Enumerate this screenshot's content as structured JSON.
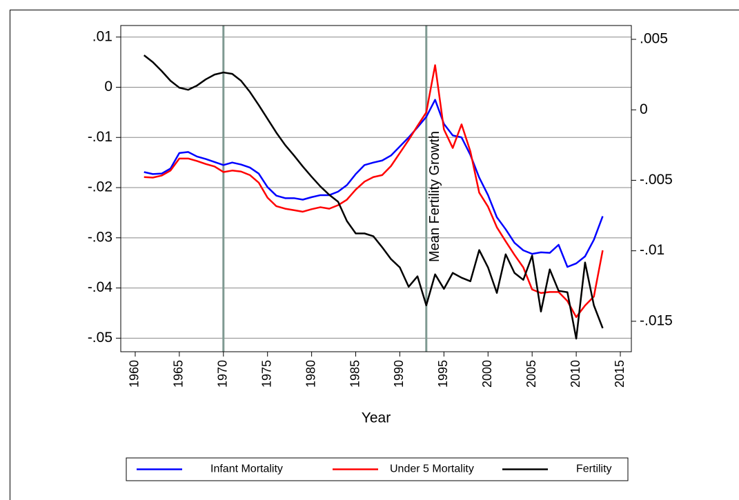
{
  "chart_data": {
    "type": "line",
    "xlabel": "Year",
    "annotation": {
      "text": "Mean Fertility Growth",
      "x": 1994
    },
    "vlines": [
      1970,
      1993
    ],
    "vline_color": "#7f9a92",
    "x": [
      1961,
      1962,
      1963,
      1964,
      1965,
      1966,
      1967,
      1968,
      1969,
      1970,
      1971,
      1972,
      1973,
      1974,
      1975,
      1976,
      1977,
      1978,
      1979,
      1980,
      1981,
      1982,
      1983,
      1984,
      1985,
      1986,
      1987,
      1988,
      1989,
      1990,
      1991,
      1992,
      1993,
      1994,
      1995,
      1996,
      1997,
      1998,
      1999,
      2000,
      2001,
      2002,
      2003,
      2004,
      2005,
      2006,
      2007,
      2008,
      2009,
      2010,
      2011,
      2012,
      2013
    ],
    "series": [
      {
        "name": "Infant Mortality",
        "color": "#0000ff",
        "axis": "y",
        "values": [
          -0.0169,
          -0.0173,
          -0.0172,
          -0.0162,
          -0.0131,
          -0.0129,
          -0.0138,
          -0.0143,
          -0.0149,
          -0.0155,
          -0.015,
          -0.0154,
          -0.016,
          -0.0172,
          -0.0199,
          -0.0216,
          -0.0221,
          -0.0221,
          -0.0224,
          -0.0219,
          -0.0215,
          -0.0215,
          -0.0208,
          -0.0195,
          -0.0173,
          -0.0155,
          -0.015,
          -0.0146,
          -0.0136,
          -0.0118,
          -0.01,
          -0.008,
          -0.0059,
          -0.0025,
          -0.0073,
          -0.0096,
          -0.01,
          -0.0135,
          -0.018,
          -0.0215,
          -0.0259,
          -0.0283,
          -0.031,
          -0.0325,
          -0.0332,
          -0.0329,
          -0.033,
          -0.0314,
          -0.0358,
          -0.0351,
          -0.0337,
          -0.0304,
          -0.0257
        ]
      },
      {
        "name": "Under 5 Mortality",
        "color": "#ff0000",
        "axis": "y",
        "values": [
          -0.0179,
          -0.018,
          -0.0176,
          -0.0166,
          -0.0142,
          -0.0142,
          -0.0147,
          -0.0153,
          -0.0158,
          -0.0169,
          -0.0166,
          -0.0168,
          -0.0175,
          -0.019,
          -0.022,
          -0.0237,
          -0.0242,
          -0.0245,
          -0.0248,
          -0.0243,
          -0.0239,
          -0.0242,
          -0.0235,
          -0.0224,
          -0.0204,
          -0.0188,
          -0.0179,
          -0.0175,
          -0.0157,
          -0.0131,
          -0.0105,
          -0.0077,
          -0.005,
          0.0044,
          -0.0084,
          -0.0121,
          -0.0074,
          -0.0128,
          -0.021,
          -0.0238,
          -0.0279,
          -0.0307,
          -0.0334,
          -0.0359,
          -0.0403,
          -0.041,
          -0.0408,
          -0.0408,
          -0.0426,
          -0.0458,
          -0.0435,
          -0.0417,
          -0.0325
        ]
      },
      {
        "name": "Fertility",
        "color": "#000000",
        "axis": "y2",
        "values": [
          0.00387,
          0.00338,
          0.00275,
          0.00206,
          0.00157,
          0.00142,
          0.00172,
          0.00216,
          0.0025,
          0.00265,
          0.00255,
          0.00206,
          0.00127,
          0.00034,
          -0.00064,
          -0.00162,
          -0.0025,
          -0.00324,
          -0.00402,
          -0.00475,
          -0.00544,
          -0.00603,
          -0.00652,
          -0.00789,
          -0.00877,
          -0.00877,
          -0.00897,
          -0.00975,
          -0.01059,
          -0.01118,
          -0.01255,
          -0.01181,
          -0.01387,
          -0.01167,
          -0.0127,
          -0.01157,
          -0.01191,
          -0.01216,
          -0.00995,
          -0.01118,
          -0.01299,
          -0.01025,
          -0.01157,
          -0.01206,
          -0.01034,
          -0.01431,
          -0.01132,
          -0.01284,
          -0.01294,
          -0.01623,
          -0.01083,
          -0.01387,
          -0.01549
        ]
      }
    ],
    "xlim": [
      1958.36,
      2016.25
    ],
    "xticks": [
      1960,
      1965,
      1970,
      1975,
      1980,
      1985,
      1990,
      1995,
      2000,
      2005,
      2010,
      2015
    ],
    "ylim": [
      -0.0527,
      0.0123
    ],
    "yticks": [
      {
        "value": 0.01,
        "label": ".01"
      },
      0,
      {
        "value": -0.01,
        "label": "-.01"
      },
      {
        "value": -0.02,
        "label": "-.02"
      },
      {
        "value": -0.03,
        "label": "-.03"
      },
      {
        "value": -0.04,
        "label": "-.04"
      },
      {
        "value": -0.05,
        "label": "-.05"
      }
    ],
    "y2lim": [
      -0.01716,
      0.00598
    ],
    "y2ticks": [
      {
        "value": 0.005,
        "label": ".005"
      },
      0,
      {
        "value": -0.005,
        "label": "-.005"
      },
      {
        "value": -0.01,
        "label": "-.01"
      },
      {
        "value": -0.015,
        "label": "-.015"
      }
    ],
    "grid": true,
    "legend": "bottom"
  }
}
